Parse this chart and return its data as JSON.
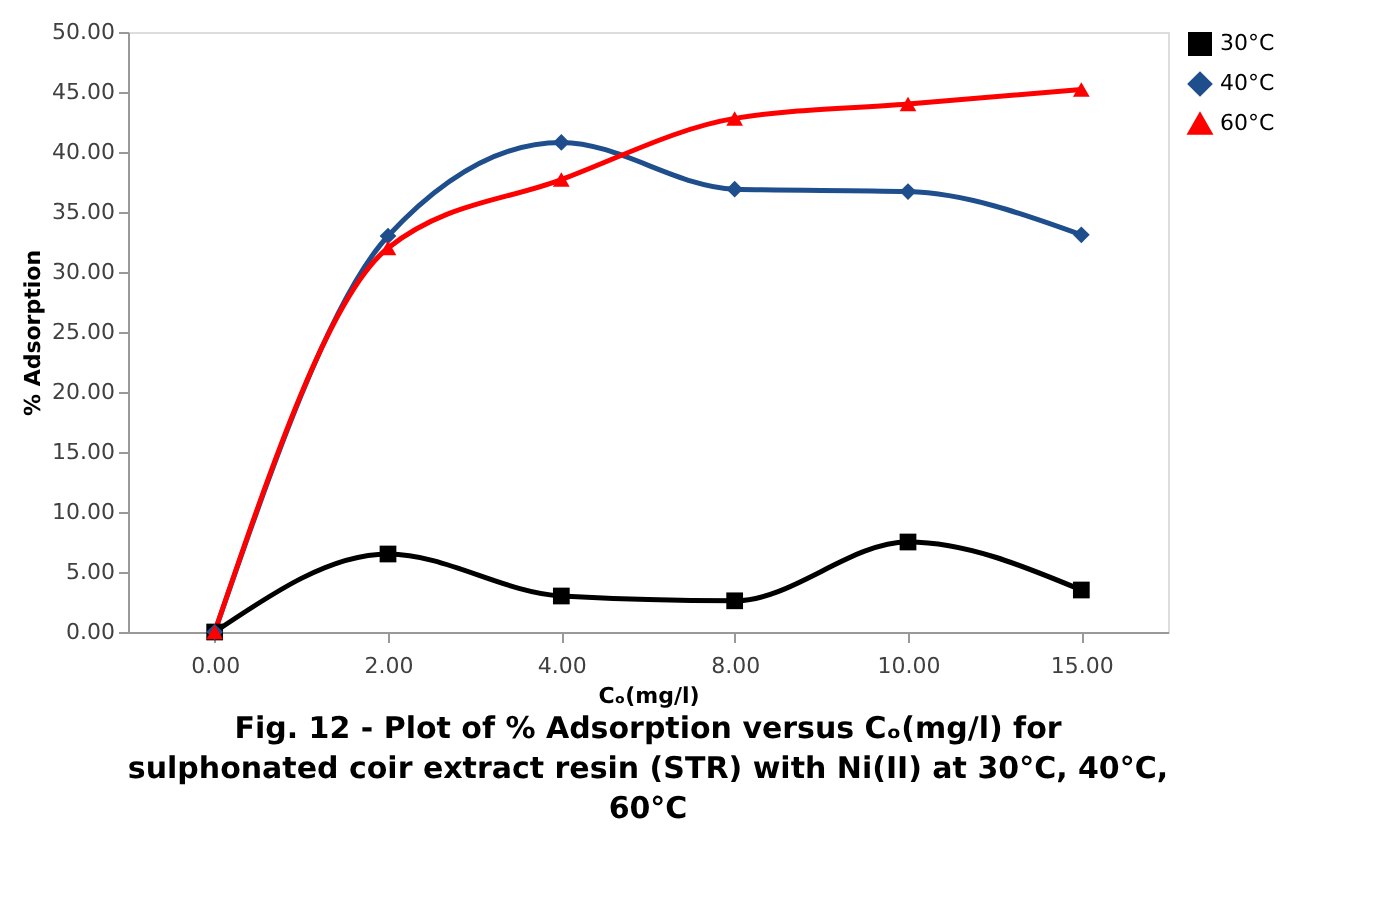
{
  "chart_data": {
    "type": "line",
    "title": "Fig. 12 - Plot of % Adsorption versus  Cₒ(mg/l)  for\nsulphonated coir extract resin (STR) with Ni(II) at 30°C, 40°C,\n60°C",
    "xlabel": "Cₒ(mg/l)",
    "ylabel": "% Adsorption",
    "categories": [
      "0.00",
      "2.00",
      "4.00",
      "8.00",
      "10.00",
      "15.00"
    ],
    "series": [
      {
        "name": "30°C",
        "color": "#000000",
        "marker": "square",
        "values": [
          0,
          6.5,
          3.0,
          2.6,
          7.5,
          3.5
        ]
      },
      {
        "name": "40°C",
        "color": "#1f4e8c",
        "marker": "diamond",
        "values": [
          0,
          33.0,
          40.8,
          36.9,
          36.7,
          33.1
        ]
      },
      {
        "name": "60°C",
        "color": "#ff0000",
        "marker": "triangle",
        "values": [
          0,
          32.0,
          37.7,
          42.8,
          44.0,
          45.2
        ]
      }
    ],
    "ylim": [
      0,
      50
    ],
    "yticks": [
      {
        "value": 0,
        "label": "0.00"
      },
      {
        "value": 5,
        "label": "5.00"
      },
      {
        "value": 10,
        "label": "10.00"
      },
      {
        "value": 15,
        "label": "15.00"
      },
      {
        "value": 20,
        "label": "20.00"
      },
      {
        "value": 25,
        "label": "25.00"
      },
      {
        "value": 30,
        "label": "30.00"
      },
      {
        "value": 35,
        "label": "35.00"
      },
      {
        "value": 40,
        "label": "40.00"
      },
      {
        "value": 45,
        "label": "45.00"
      },
      {
        "value": 50,
        "label": "50.00"
      }
    ],
    "grid": false,
    "legend": "right",
    "line_style": "solid"
  }
}
